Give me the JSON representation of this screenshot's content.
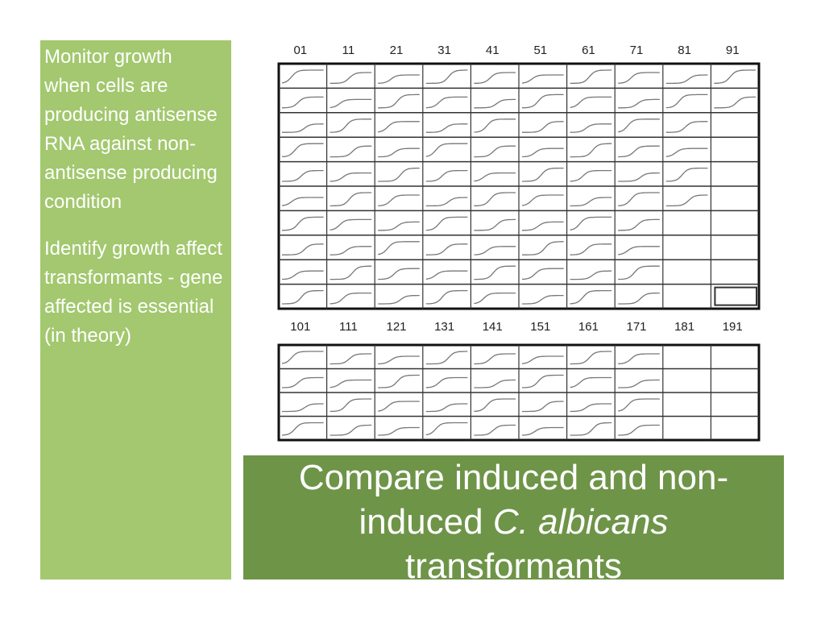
{
  "side_panel": {
    "paragraphs": [
      "Monitor growth when cells are producing antisense RNA against non-antisense producing condition",
      "Identify growth affect transformants - gene affected is essential (in theory)"
    ]
  },
  "figure": {
    "top_grid": {
      "columns": [
        "01",
        "11",
        "21",
        "31",
        "41",
        "51",
        "61",
        "71",
        "81",
        "91"
      ]
    },
    "bottom_grid": {
      "columns": [
        "101",
        "111",
        "121",
        "131",
        "141",
        "151",
        "161",
        "171",
        "181",
        "191"
      ]
    }
  },
  "caption": {
    "before": "Compare induced and non-induced",
    "italic": "C. albicans",
    "after": "transformants"
  }
}
